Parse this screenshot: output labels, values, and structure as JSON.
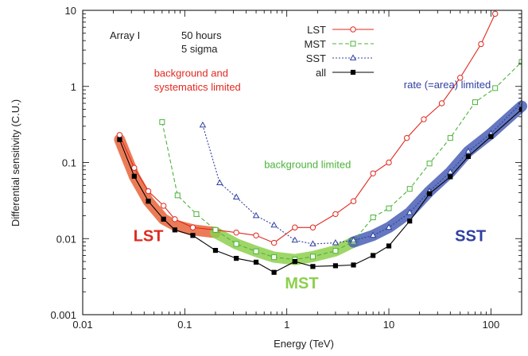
{
  "chart_data": {
    "type": "line",
    "xlabel": "Energy (TeV)",
    "ylabel": "Differential sensitivity (C.U.)",
    "xscale": "log",
    "yscale": "log",
    "xlim": [
      0.01,
      200
    ],
    "ylim": [
      0.001,
      10
    ],
    "x_ticks": [
      {
        "value": 0.01,
        "label": "0.01"
      },
      {
        "value": 0.1,
        "label": "0.1"
      },
      {
        "value": 1,
        "label": "1"
      },
      {
        "value": 10,
        "label": "10"
      },
      {
        "value": 100,
        "label": "100"
      }
    ],
    "y_ticks": [
      {
        "value": 0.001,
        "label": "0.001"
      },
      {
        "value": 0.01,
        "label": "0.01"
      },
      {
        "value": 0.1,
        "label": "0.1"
      },
      {
        "value": 1,
        "label": "1"
      },
      {
        "value": 10,
        "label": "10"
      }
    ],
    "texts": {
      "array": "Array I",
      "hours": "50 hours",
      "sigma": "5 sigma"
    },
    "legend_position": "top-center",
    "series": [
      {
        "name": "LST",
        "color": "#e0291f",
        "dash": "",
        "marker": "circle",
        "points": [
          [
            0.023,
            0.23
          ],
          [
            0.032,
            0.085
          ],
          [
            0.044,
            0.042
          ],
          [
            0.062,
            0.027
          ],
          [
            0.08,
            0.018
          ],
          [
            0.12,
            0.014
          ],
          [
            0.2,
            0.013
          ],
          [
            0.32,
            0.012
          ],
          [
            0.5,
            0.011
          ],
          [
            0.75,
            0.0088
          ],
          [
            1.2,
            0.014
          ],
          [
            1.8,
            0.014
          ],
          [
            3,
            0.021
          ],
          [
            4.5,
            0.031
          ],
          [
            7,
            0.072
          ],
          [
            10,
            0.1
          ],
          [
            15,
            0.21
          ],
          [
            22,
            0.37
          ],
          [
            33,
            0.6
          ],
          [
            50,
            1.3
          ],
          [
            80,
            3.6
          ],
          [
            110,
            9.0
          ]
        ]
      },
      {
        "name": "MST",
        "color": "#4cb33a",
        "dash": "5,3",
        "marker": "square",
        "points": [
          [
            0.06,
            0.34
          ],
          [
            0.085,
            0.037
          ],
          [
            0.13,
            0.021
          ],
          [
            0.2,
            0.013
          ],
          [
            0.32,
            0.0085
          ],
          [
            0.5,
            0.0068
          ],
          [
            0.75,
            0.0057
          ],
          [
            1.2,
            0.0053
          ],
          [
            1.8,
            0.0058
          ],
          [
            3,
            0.0069
          ],
          [
            4.5,
            0.0092
          ],
          [
            7,
            0.019
          ],
          [
            10,
            0.025
          ],
          [
            16,
            0.045
          ],
          [
            25,
            0.097
          ],
          [
            40,
            0.21
          ],
          [
            70,
            0.62
          ],
          [
            110,
            0.95
          ],
          [
            200,
            2.1
          ]
        ]
      },
      {
        "name": "SST",
        "color": "#3040a0",
        "dash": "2,2",
        "marker": "triangle",
        "points": [
          [
            0.15,
            0.31
          ],
          [
            0.22,
            0.054
          ],
          [
            0.32,
            0.035
          ],
          [
            0.5,
            0.02
          ],
          [
            0.75,
            0.015
          ],
          [
            1.2,
            0.0095
          ],
          [
            1.8,
            0.0085
          ],
          [
            3,
            0.0088
          ],
          [
            4.5,
            0.0095
          ],
          [
            7,
            0.011
          ],
          [
            10,
            0.014
          ],
          [
            16,
            0.022
          ],
          [
            25,
            0.042
          ],
          [
            40,
            0.075
          ],
          [
            60,
            0.14
          ],
          [
            100,
            0.24
          ],
          [
            200,
            0.61
          ]
        ]
      },
      {
        "name": "all",
        "color": "#000000",
        "dash": "",
        "marker": "filled-square",
        "points": [
          [
            0.023,
            0.2
          ],
          [
            0.032,
            0.066
          ],
          [
            0.044,
            0.031
          ],
          [
            0.062,
            0.018
          ],
          [
            0.08,
            0.013
          ],
          [
            0.12,
            0.011
          ],
          [
            0.2,
            0.007
          ],
          [
            0.32,
            0.0055
          ],
          [
            0.5,
            0.0049
          ],
          [
            0.75,
            0.0036
          ],
          [
            1.2,
            0.005
          ],
          [
            1.8,
            0.0043
          ],
          [
            3,
            0.0044
          ],
          [
            4.5,
            0.0045
          ],
          [
            7,
            0.006
          ],
          [
            10,
            0.008
          ],
          [
            16,
            0.017
          ],
          [
            25,
            0.039
          ],
          [
            40,
            0.065
          ],
          [
            60,
            0.12
          ],
          [
            100,
            0.22
          ],
          [
            200,
            0.5
          ]
        ]
      }
    ],
    "bands": [
      {
        "name": "LST",
        "color": "#e8643a",
        "points": [
          [
            0.023,
            0.2
          ],
          [
            0.032,
            0.066
          ],
          [
            0.044,
            0.031
          ],
          [
            0.062,
            0.018
          ],
          [
            0.08,
            0.015
          ],
          [
            0.12,
            0.013
          ],
          [
            0.2,
            0.012
          ]
        ]
      },
      {
        "name": "MST",
        "color": "#8ecf4e",
        "points": [
          [
            0.2,
            0.012
          ],
          [
            0.32,
            0.0085
          ],
          [
            0.5,
            0.0068
          ],
          [
            0.75,
            0.0057
          ],
          [
            1.2,
            0.0053
          ],
          [
            1.8,
            0.0058
          ],
          [
            3,
            0.0069
          ],
          [
            4.5,
            0.009
          ]
        ]
      },
      {
        "name": "SST",
        "color": "#4a5fb5",
        "points": [
          [
            4.5,
            0.009
          ],
          [
            7,
            0.011
          ],
          [
            10,
            0.014
          ],
          [
            16,
            0.022
          ],
          [
            25,
            0.042
          ],
          [
            40,
            0.075
          ],
          [
            60,
            0.14
          ],
          [
            100,
            0.24
          ],
          [
            200,
            0.55
          ]
        ]
      }
    ],
    "annotations": [
      {
        "id": "bg-sys-1",
        "text": "background and",
        "color": "#e0291f",
        "x": 0.05,
        "y": 1.35
      },
      {
        "id": "bg-sys-2",
        "text": "systematics limited",
        "color": "#e0291f",
        "x": 0.05,
        "y": 0.88
      },
      {
        "id": "bg-lim",
        "text": "background limited",
        "color": "#4cb33a",
        "x": 0.6,
        "y": 0.085
      },
      {
        "id": "rate-lim",
        "text": "rate (=area) limited",
        "color": "#3040a0",
        "x": 14,
        "y": 0.95
      }
    ],
    "region_labels": [
      {
        "id": "lst-big",
        "text": "LST",
        "color": "#e0291f",
        "x": 0.044,
        "y": 0.0093
      },
      {
        "id": "mst-big",
        "text": "MST",
        "color": "#8ecf4e",
        "x": 1.4,
        "y": 0.0022
      },
      {
        "id": "sst-big",
        "text": "SST",
        "color": "#3040a0",
        "x": 63,
        "y": 0.0093
      }
    ]
  }
}
